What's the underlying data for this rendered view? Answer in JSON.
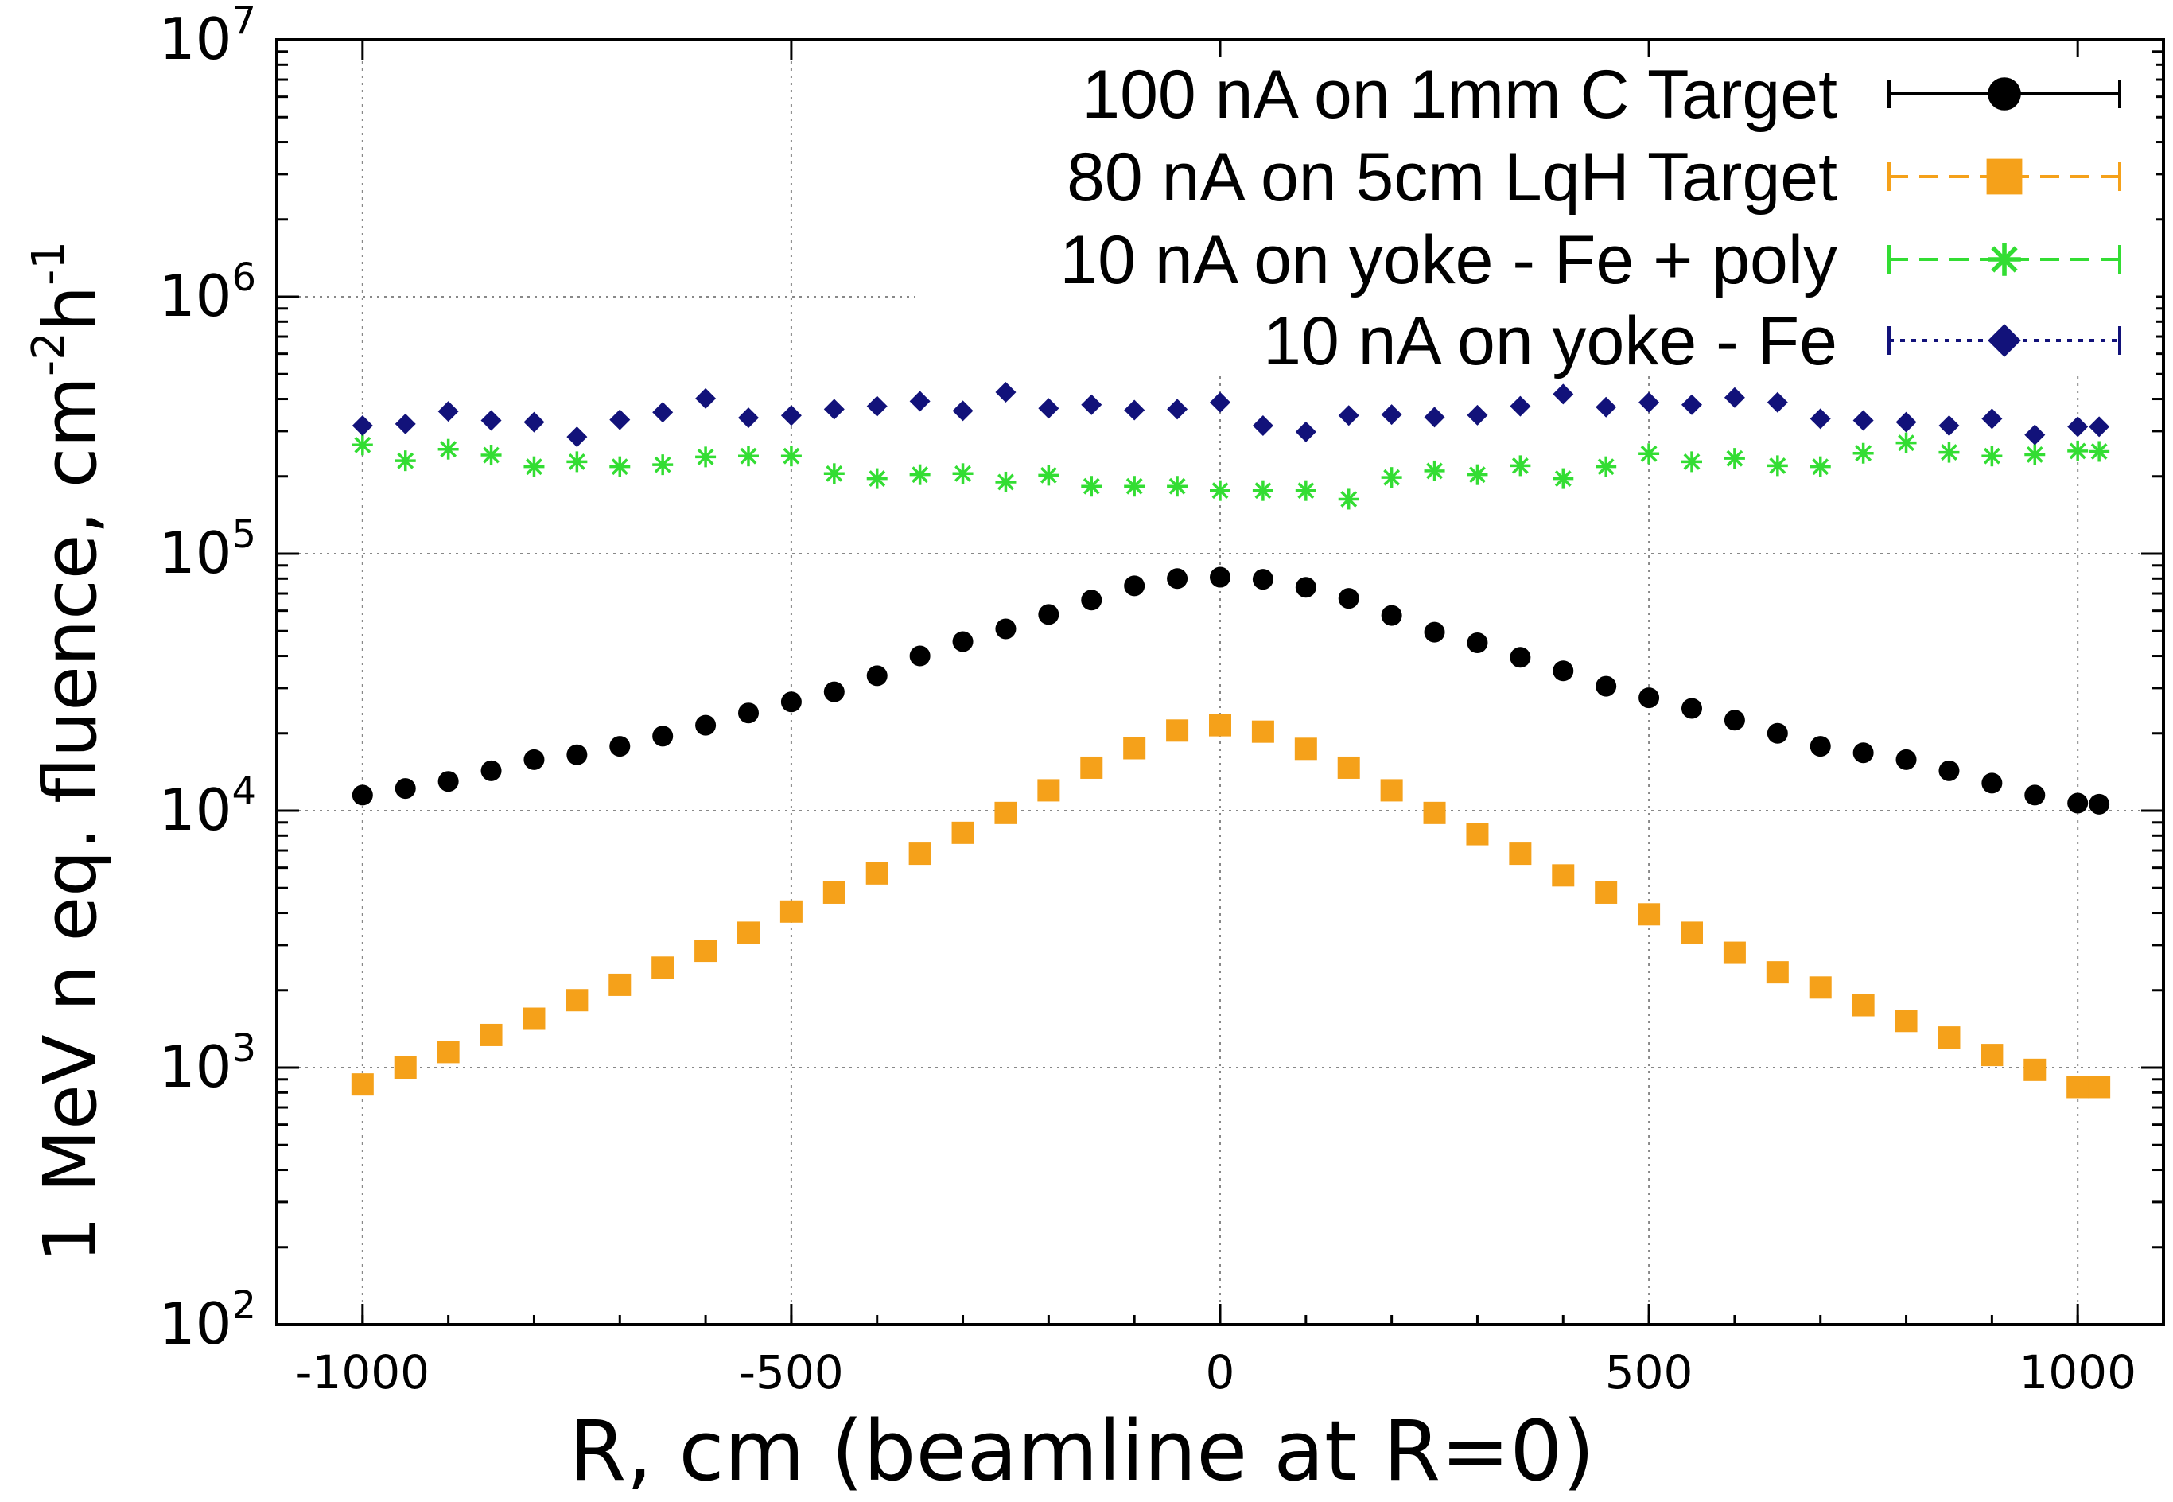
{
  "chart_data": {
    "type": "scatter",
    "title": "",
    "xlabel": "R, cm (beamline at R=0)",
    "ylabel": {
      "main": "1 MeV n eq. fluence, cm",
      "sup1": "-2",
      "mid": "h",
      "sup2": "-1"
    },
    "xlim": [
      -1100,
      1100
    ],
    "ylim": [
      100,
      10000000
    ],
    "yscale": "log",
    "grid": true,
    "legend_position": "top-right",
    "xticks": [
      {
        "value": -1000,
        "label": "-1000"
      },
      {
        "value": -500,
        "label": "-500"
      },
      {
        "value": 0,
        "label": "0"
      },
      {
        "value": 500,
        "label": "500"
      },
      {
        "value": 1000,
        "label": "1000"
      }
    ],
    "yticks": [
      {
        "value": 100,
        "base": "10",
        "exp": "2"
      },
      {
        "value": 1000,
        "base": "10",
        "exp": "3"
      },
      {
        "value": 10000,
        "base": "10",
        "exp": "4"
      },
      {
        "value": 100000,
        "base": "10",
        "exp": "5"
      },
      {
        "value": 1000000,
        "base": "10",
        "exp": "6"
      },
      {
        "value": 10000000,
        "base": "10",
        "exp": "7"
      }
    ],
    "series": [
      {
        "name": "100 nA on 1mm C Target",
        "color": "#000000",
        "marker": "circle",
        "line_style": "solid",
        "x": [
          -1000,
          -950,
          -900,
          -850,
          -800,
          -750,
          -700,
          -650,
          -600,
          -550,
          -500,
          -450,
          -400,
          -350,
          -300,
          -250,
          -200,
          -150,
          -100,
          -50,
          0,
          50,
          100,
          150,
          200,
          250,
          300,
          350,
          400,
          450,
          500,
          550,
          600,
          650,
          700,
          750,
          800,
          850,
          900,
          950,
          1000,
          1025
        ],
        "y": [
          11500,
          12200,
          13000,
          14300,
          15800,
          16500,
          17800,
          19500,
          21500,
          24000,
          26500,
          29000,
          33500,
          40000,
          45500,
          51000,
          58000,
          66000,
          75000,
          80000,
          81000,
          79500,
          74000,
          67000,
          57500,
          49500,
          45000,
          39500,
          35000,
          30500,
          27500,
          25000,
          22500,
          20000,
          17800,
          16800,
          15800,
          14300,
          12800,
          11500,
          10700,
          10600
        ]
      },
      {
        "name": "80 nA on 5cm LqH Target",
        "color": "#f5a11a",
        "marker": "square",
        "line_style": "dashed",
        "x": [
          -1000,
          -950,
          -900,
          -850,
          -800,
          -750,
          -700,
          -650,
          -600,
          -550,
          -500,
          -450,
          -400,
          -350,
          -300,
          -250,
          -200,
          -150,
          -100,
          -50,
          0,
          50,
          100,
          150,
          200,
          250,
          300,
          350,
          400,
          450,
          500,
          550,
          600,
          650,
          700,
          750,
          800,
          850,
          900,
          950,
          1000,
          1025
        ],
        "y": [
          860,
          1000,
          1150,
          1340,
          1550,
          1830,
          2100,
          2450,
          2850,
          3350,
          4050,
          4800,
          5700,
          6800,
          8200,
          9800,
          12000,
          14700,
          17500,
          20500,
          21500,
          20300,
          17400,
          14700,
          12000,
          9800,
          8100,
          6800,
          5600,
          4800,
          3950,
          3350,
          2800,
          2350,
          2050,
          1750,
          1520,
          1310,
          1120,
          980,
          840,
          840
        ]
      },
      {
        "name": "10 nA on yoke - Fe + poly",
        "color": "#33dd33",
        "marker": "star",
        "line_style": "dashed",
        "x": [
          -1000,
          -950,
          -900,
          -850,
          -800,
          -750,
          -700,
          -650,
          -600,
          -550,
          -500,
          -450,
          -400,
          -350,
          -300,
          -250,
          -200,
          -150,
          -100,
          -50,
          0,
          50,
          100,
          150,
          200,
          250,
          300,
          350,
          400,
          450,
          500,
          550,
          600,
          650,
          700,
          750,
          800,
          850,
          900,
          950,
          1000,
          1025
        ],
        "y": [
          265000,
          230000,
          255000,
          242000,
          218000,
          228000,
          218000,
          222000,
          238000,
          240000,
          240000,
          205000,
          196000,
          203000,
          205000,
          190000,
          202000,
          183000,
          183000,
          183000,
          176000,
          176000,
          176000,
          163000,
          198000,
          210000,
          203000,
          220000,
          196000,
          218000,
          245000,
          228000,
          235000,
          220000,
          218000,
          246000,
          270000,
          248000,
          240000,
          243000,
          251000,
          250000
        ]
      },
      {
        "name": "10 nA on yoke - Fe",
        "color": "#12127a",
        "marker": "diamond",
        "line_style": "dotted",
        "x": [
          -1000,
          -950,
          -900,
          -850,
          -800,
          -750,
          -700,
          -650,
          -600,
          -550,
          -500,
          -450,
          -400,
          -350,
          -300,
          -250,
          -200,
          -150,
          -100,
          -50,
          0,
          50,
          100,
          150,
          200,
          250,
          300,
          350,
          400,
          450,
          500,
          550,
          600,
          650,
          700,
          750,
          800,
          850,
          900,
          950,
          1000,
          1025
        ],
        "y": [
          315000,
          320000,
          358000,
          330000,
          325000,
          285000,
          332000,
          355000,
          402000,
          338000,
          345000,
          365000,
          375000,
          392000,
          360000,
          425000,
          368000,
          380000,
          362000,
          365000,
          388000,
          315000,
          298000,
          345000,
          348000,
          340000,
          346000,
          375000,
          418000,
          372000,
          388000,
          380000,
          405000,
          388000,
          335000,
          330000,
          325000,
          315000,
          335000,
          290000,
          312000,
          312000
        ]
      }
    ]
  }
}
